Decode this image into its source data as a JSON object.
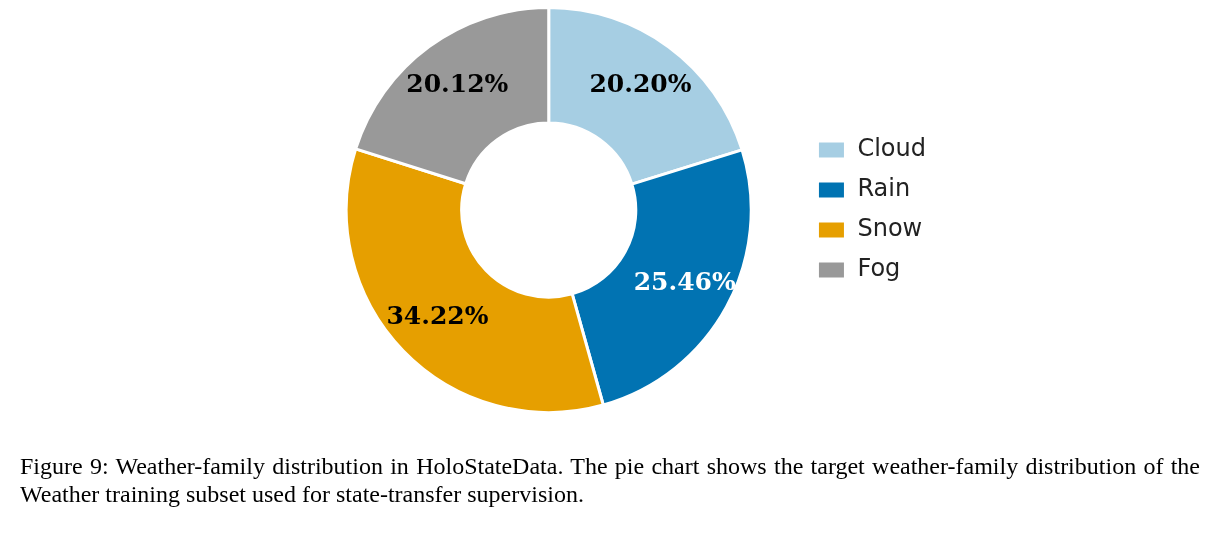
{
  "chart_data": {
    "type": "donut",
    "categories": [
      "Cloud",
      "Rain",
      "Snow",
      "Fog"
    ],
    "values": [
      20.2,
      25.46,
      34.22,
      20.12
    ],
    "colors": [
      "#a6cee3",
      "#0173b2",
      "#e69f00",
      "#999999"
    ],
    "value_labels": [
      "20.20%",
      "25.46%",
      "34.22%",
      "20.12%"
    ],
    "legend": "right",
    "annotations": [
      "Figure 9: Weather-family distribution in HoloStateData. The pie chart shows the target weather-family distribution of the Weather training subset used for state-transfer supervision."
    ]
  }
}
